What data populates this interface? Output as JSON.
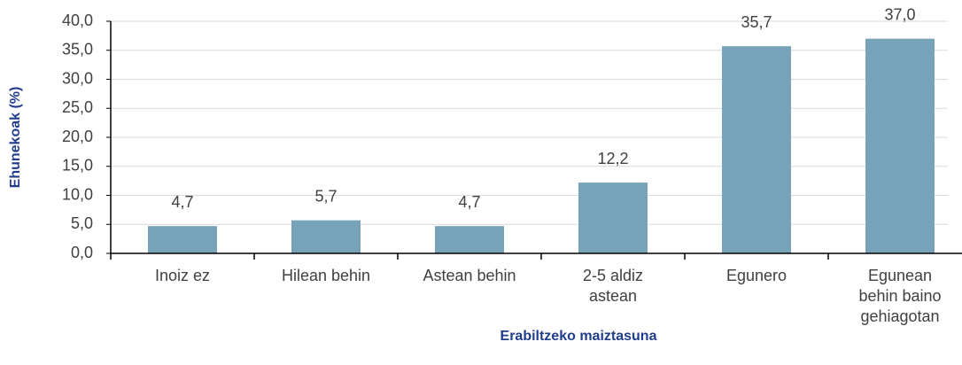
{
  "chart_data": {
    "type": "bar",
    "categories": [
      "Inoiz ez",
      "Hilean behin",
      "Astean behin",
      "2-5 aldiz astean",
      "Egunero",
      "Egunean behin baino gehiagotan"
    ],
    "values": [
      4.7,
      5.7,
      4.7,
      12.2,
      35.7,
      37.0
    ],
    "value_labels": [
      "4,7",
      "5,7",
      "4,7",
      "12,2",
      "35,7",
      "37,0"
    ],
    "color": "#77a3b9",
    "x_label": "Erabiltzeko maiztasuna",
    "y_label": "Ehunekoak (%)",
    "ylim": [
      0,
      40
    ],
    "yticks": [
      {
        "value": 0,
        "label": "0,0"
      },
      {
        "value": 5,
        "label": "5,0"
      },
      {
        "value": 10,
        "label": "10,0"
      },
      {
        "value": 15,
        "label": "15,0"
      },
      {
        "value": 20,
        "label": "20,0"
      },
      {
        "value": 25,
        "label": "25,0"
      },
      {
        "value": 30,
        "label": "30,0"
      },
      {
        "value": 35,
        "label": "35,0"
      },
      {
        "value": 40,
        "label": "40,0"
      }
    ],
    "grid": true
  }
}
